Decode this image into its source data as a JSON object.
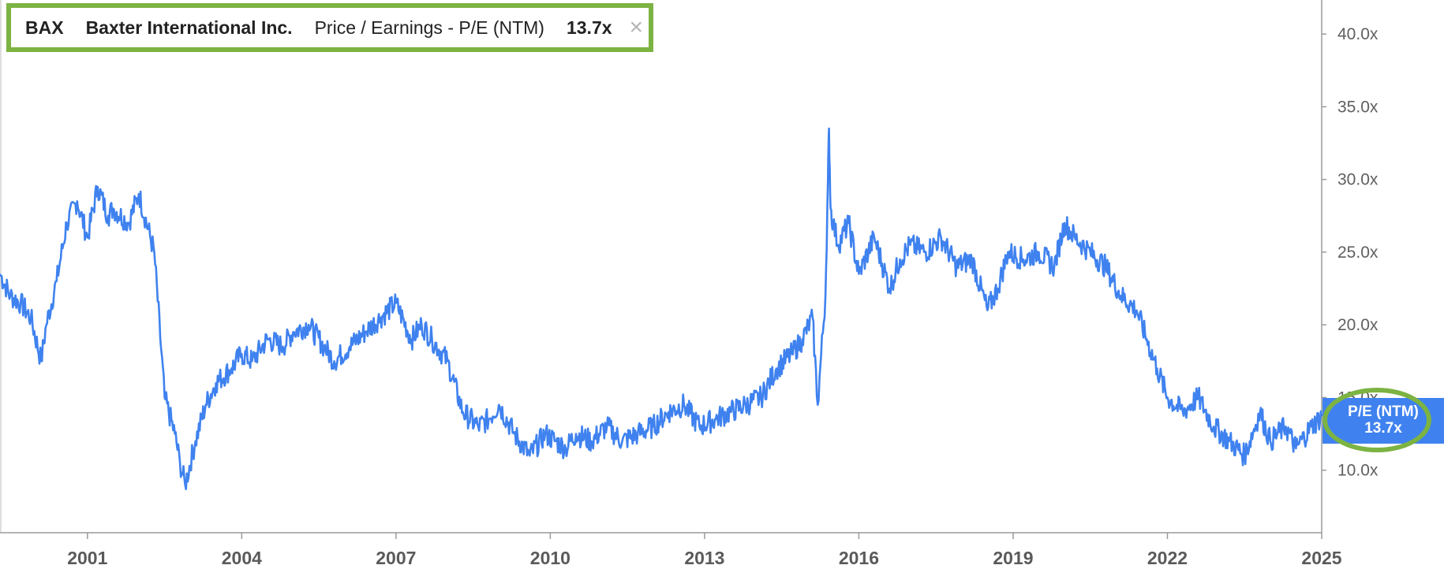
{
  "header": {
    "ticker": "BAX",
    "company": "Baxter International Inc.",
    "metric": "Price / Earnings - P/E (NTM)",
    "value": "13.7x",
    "close_glyph": "×"
  },
  "current_tag": {
    "label": "P/E (NTM)",
    "value": "13.7x"
  },
  "colors": {
    "line": "#3f82ef",
    "highlight": "#7cb342",
    "axis": "#9a9a9a"
  },
  "chart_data": {
    "type": "line",
    "title": "",
    "xlabel": "",
    "ylabel": "",
    "x_ticks": [
      "2001",
      "2004",
      "2007",
      "2010",
      "2013",
      "2016",
      "2019",
      "2022",
      "2025"
    ],
    "y_ticks": [
      "10.0x",
      "15.0x",
      "20.0x",
      "25.0x",
      "30.0x",
      "35.0x",
      "40.0x"
    ],
    "xlim": [
      1999.3,
      2025.0
    ],
    "ylim": [
      5.7,
      41.8
    ],
    "grid": false,
    "series": [
      {
        "name": "P/E (NTM)",
        "x": [
          1999.3,
          1999.5,
          1999.7,
          1999.9,
          2000.1,
          2000.2,
          2000.4,
          2000.6,
          2000.8,
          2001.0,
          2001.2,
          2001.4,
          2001.5,
          2001.8,
          2002.0,
          2002.3,
          2002.5,
          2002.7,
          2002.8,
          2002.9,
          2003.1,
          2003.3,
          2003.5,
          2003.8,
          2004.0,
          2004.2,
          2004.5,
          2004.8,
          2005.0,
          2005.3,
          2005.6,
          2005.8,
          2006.1,
          2006.4,
          2006.7,
          2007.0,
          2007.3,
          2007.5,
          2007.7,
          2008.0,
          2008.3,
          2008.6,
          2008.8,
          2009.0,
          2009.3,
          2009.6,
          2009.9,
          2010.1,
          2010.3,
          2010.5,
          2010.8,
          2011.1,
          2011.4,
          2011.7,
          2012.0,
          2012.3,
          2012.6,
          2012.9,
          2013.2,
          2013.5,
          2013.8,
          2014.1,
          2014.4,
          2014.7,
          2014.9,
          2015.1,
          2015.2,
          2015.35,
          2015.4,
          2015.42,
          2015.45,
          2015.5,
          2015.6,
          2015.8,
          2016.0,
          2016.3,
          2016.6,
          2016.8,
          2017.0,
          2017.3,
          2017.6,
          2017.9,
          2018.2,
          2018.5,
          2018.7,
          2018.9,
          2019.2,
          2019.5,
          2019.8,
          2020.0,
          2020.2,
          2020.5,
          2020.8,
          2021.1,
          2021.4,
          2021.6,
          2021.8,
          2022.0,
          2022.3,
          2022.6,
          2022.9,
          2023.2,
          2023.5,
          2023.8,
          2024.0,
          2024.3,
          2024.5,
          2024.8,
          2025.0
        ],
        "values": [
          23.5,
          22.0,
          21.5,
          20.5,
          17.5,
          20.0,
          23.0,
          27.0,
          28.5,
          26.0,
          29.5,
          27.5,
          28.0,
          27.0,
          29.0,
          25.0,
          15.0,
          12.5,
          10.5,
          9.0,
          12.0,
          14.5,
          16.0,
          17.0,
          18.0,
          17.5,
          19.0,
          18.5,
          19.5,
          20.0,
          18.5,
          17.5,
          18.5,
          19.5,
          20.5,
          21.5,
          19.0,
          20.0,
          19.0,
          17.5,
          14.0,
          13.0,
          13.5,
          14.5,
          12.5,
          11.0,
          12.5,
          12.0,
          11.5,
          12.5,
          12.0,
          13.0,
          12.0,
          12.5,
          13.0,
          14.0,
          14.5,
          13.0,
          13.5,
          14.0,
          14.5,
          15.0,
          17.0,
          18.0,
          19.0,
          20.5,
          14.5,
          22.0,
          30.0,
          33.5,
          28.0,
          27.0,
          25.5,
          27.0,
          23.5,
          26.0,
          22.5,
          24.5,
          25.5,
          25.0,
          26.0,
          24.0,
          24.5,
          21.0,
          22.5,
          25.0,
          24.5,
          25.0,
          24.0,
          27.0,
          26.0,
          25.0,
          24.0,
          22.0,
          21.0,
          19.0,
          17.0,
          15.0,
          14.0,
          15.0,
          13.0,
          12.0,
          11.0,
          14.0,
          12.0,
          13.0,
          11.5,
          13.0,
          13.7
        ]
      }
    ]
  }
}
